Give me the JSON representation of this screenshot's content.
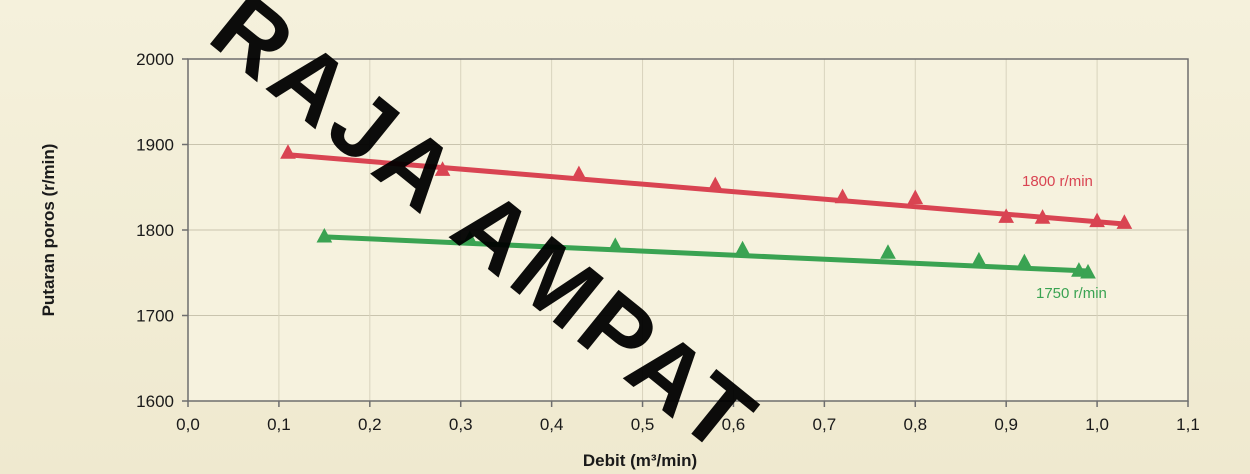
{
  "chart_data": {
    "type": "line",
    "xlabel": "Debit (m³/min)",
    "ylabel": "Putaran poros (r/min)",
    "xlim": [
      0.0,
      1.1
    ],
    "ylim": [
      1600,
      2000
    ],
    "x_ticks": [
      "0,0",
      "0,1",
      "0,2",
      "0,3",
      "0,4",
      "0,5",
      "0,6",
      "0,7",
      "0,8",
      "0,9",
      "1,0",
      "1,1"
    ],
    "x_tick_values": [
      0.0,
      0.1,
      0.2,
      0.3,
      0.4,
      0.5,
      0.6,
      0.7,
      0.8,
      0.9,
      1.0,
      1.1
    ],
    "y_ticks": [
      "1600",
      "1700",
      "1800",
      "1900",
      "2000"
    ],
    "y_tick_values": [
      1600,
      1700,
      1800,
      1900,
      2000
    ],
    "grid": true,
    "series": [
      {
        "name": "1800 r/min",
        "color": "#d94452",
        "marker": "triangle",
        "points": [
          {
            "x": 0.11,
            "y": 1890
          },
          {
            "x": 0.28,
            "y": 1870
          },
          {
            "x": 0.43,
            "y": 1865
          },
          {
            "x": 0.58,
            "y": 1852
          },
          {
            "x": 0.72,
            "y": 1838
          },
          {
            "x": 0.8,
            "y": 1837
          },
          {
            "x": 0.9,
            "y": 1815
          },
          {
            "x": 0.94,
            "y": 1814
          },
          {
            "x": 1.0,
            "y": 1810
          },
          {
            "x": 1.03,
            "y": 1808
          }
        ],
        "fit": [
          {
            "x": 0.11,
            "y": 1888
          },
          {
            "x": 1.03,
            "y": 1807
          }
        ]
      },
      {
        "name": "1750 r/min",
        "color": "#3aa352",
        "marker": "triangle",
        "points": [
          {
            "x": 0.15,
            "y": 1792
          },
          {
            "x": 0.31,
            "y": 1789
          },
          {
            "x": 0.47,
            "y": 1781
          },
          {
            "x": 0.61,
            "y": 1777
          },
          {
            "x": 0.77,
            "y": 1773
          },
          {
            "x": 0.87,
            "y": 1764
          },
          {
            "x": 0.92,
            "y": 1762
          },
          {
            "x": 0.98,
            "y": 1752
          },
          {
            "x": 0.99,
            "y": 1750
          }
        ],
        "fit": [
          {
            "x": 0.15,
            "y": 1792
          },
          {
            "x": 0.99,
            "y": 1752
          }
        ]
      }
    ],
    "annotations": [
      "1800 r/min",
      "1750 r/min"
    ]
  },
  "watermark": "RAJA AMPAT"
}
